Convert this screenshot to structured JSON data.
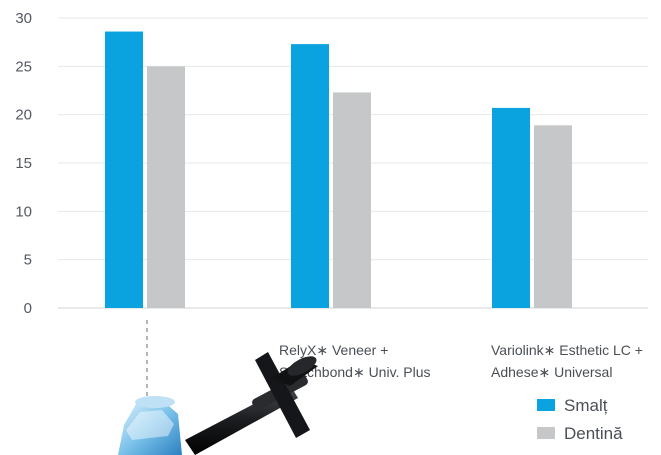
{
  "chart_data": {
    "type": "bar",
    "title": "",
    "xlabel": "",
    "ylabel": "",
    "ylim": [
      0,
      30
    ],
    "yticks": [
      0,
      5,
      10,
      15,
      20,
      25,
      30
    ],
    "grid": true,
    "legend_position": "bottom-right",
    "categories": [
      {
        "lines": [
          "",
          ""
        ]
      },
      {
        "lines": [
          "RelyX∗ Veneer +",
          "Scotchbond∗ Univ. Plus"
        ]
      },
      {
        "lines": [
          "Variolink∗ Esthetic LC +",
          "Adhese∗ Universal"
        ]
      }
    ],
    "series": [
      {
        "name": "Smalț",
        "color": "#0aa3e0",
        "values": [
          28.6,
          27.3,
          20.7
        ]
      },
      {
        "name": "Dentină",
        "color": "#c6c7c9",
        "values": [
          25.0,
          22.3,
          18.9
        ]
      }
    ]
  },
  "product_image": {
    "icon": "adhesive-syringe-icon",
    "description_hidden": true
  }
}
